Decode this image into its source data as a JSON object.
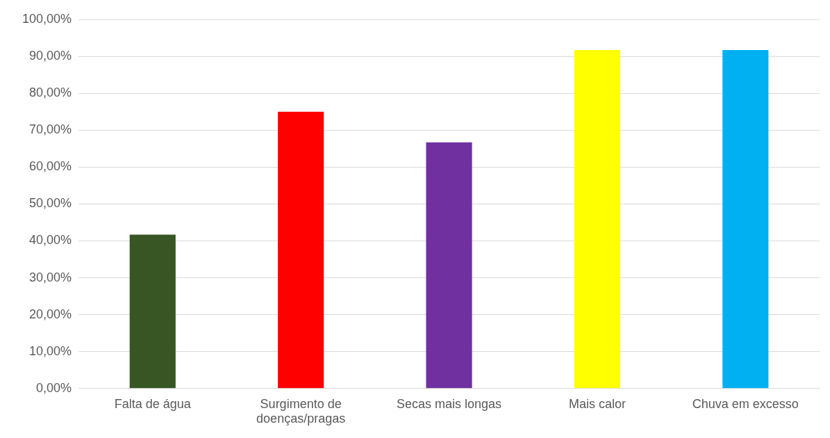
{
  "chart_data": {
    "type": "bar",
    "categories": [
      "Falta de água",
      "Surgimento de doenças/pragas",
      "Secas mais longas",
      "Mais calor",
      "Chuva em excesso"
    ],
    "values": [
      41.7,
      75,
      66.7,
      91.7,
      91.7
    ],
    "colors": [
      "#375623",
      "#ff0000",
      "#7030a0",
      "#ffff00",
      "#00b0f0"
    ],
    "ylim": [
      0,
      100
    ],
    "yticks": [
      {
        "value": 0,
        "label": "0,00%"
      },
      {
        "value": 10,
        "label": "10,00%"
      },
      {
        "value": 20,
        "label": "20,00%"
      },
      {
        "value": 30,
        "label": "30,00%"
      },
      {
        "value": 40,
        "label": "40,00%"
      },
      {
        "value": 50,
        "label": "50,00%"
      },
      {
        "value": 60,
        "label": "60,00%"
      },
      {
        "value": 70,
        "label": "70,00%"
      },
      {
        "value": 80,
        "label": "80,00%"
      },
      {
        "value": 90,
        "label": "90,00%"
      },
      {
        "value": 100,
        "label": "100,00%"
      }
    ],
    "grid": "y",
    "legend": false
  }
}
